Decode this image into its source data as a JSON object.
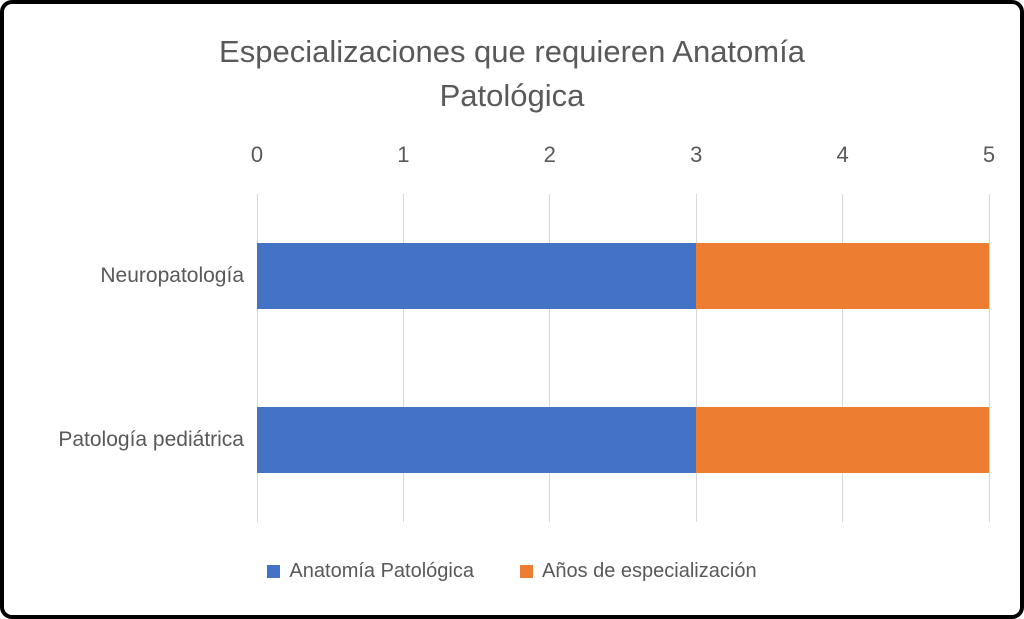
{
  "chart_data": {
    "type": "bar",
    "orientation": "horizontal",
    "stacked": true,
    "title": "Especializaciones que requieren Anatomía Patológica",
    "categories": [
      "Neuropatología",
      "Patología pediátrica"
    ],
    "series": [
      {
        "name": "Anatomía Patológica",
        "color": "#4472C4",
        "values": [
          3,
          3
        ]
      },
      {
        "name": "Años de especialización",
        "color": "#ED7D31",
        "values": [
          2,
          2
        ]
      }
    ],
    "x_axis": {
      "min": 0,
      "max": 5,
      "ticks": [
        0,
        1,
        2,
        3,
        4,
        5
      ],
      "position": "top"
    },
    "grid": true,
    "legend_position": "bottom",
    "colors": {
      "text": "#595959",
      "gridline": "#D9D9D9",
      "background": "#FFFFFF",
      "border": "#000000"
    }
  }
}
